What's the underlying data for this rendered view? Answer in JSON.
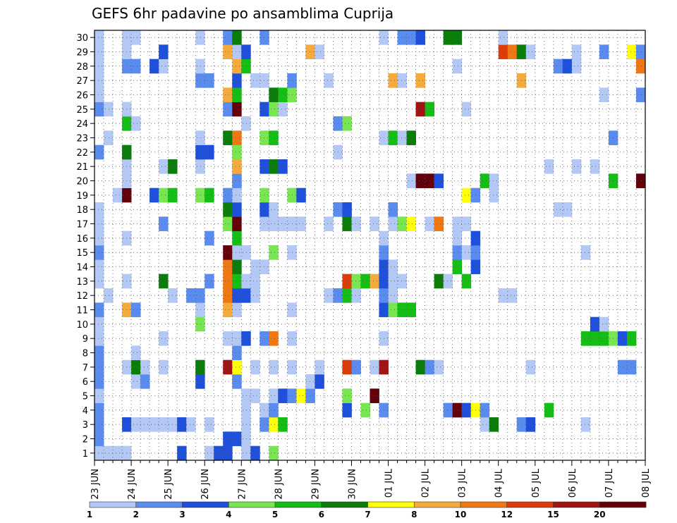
{
  "chart_data": {
    "type": "heatmap",
    "title": "GEFS 6hr padavine po ansamblima Cuprija",
    "xlabel": "",
    "ylabel": "",
    "x_tick_labels": [
      "23 JUN",
      "24 JUN",
      "25 JUN",
      "26 JUN",
      "27 JUN",
      "28 JUN",
      "29 JUN",
      "30 JUN",
      "01 JUL",
      "02 JUL",
      "03 JUL",
      "04 JUL",
      "05 JUL",
      "06 JUL",
      "07 JUL",
      "08 JUL"
    ],
    "y_tick_labels": [
      "1",
      "2",
      "3",
      "4",
      "5",
      "6",
      "7",
      "8",
      "9",
      "10",
      "11",
      "12",
      "13",
      "14",
      "15",
      "16",
      "17",
      "18",
      "19",
      "20",
      "21",
      "22",
      "23",
      "24",
      "25",
      "26",
      "27",
      "28",
      "29",
      "30"
    ],
    "x_steps_per_day": 4,
    "n_time_steps": 60,
    "n_members": 30,
    "grid": true,
    "grid_style": "dotted",
    "colorbar": {
      "orientation": "horizontal",
      "placement": "bottom",
      "labels": [
        "1",
        "2",
        "3",
        "4",
        "5",
        "6",
        "7",
        "8",
        "10",
        "12",
        "15",
        "20"
      ],
      "colors": [
        "#b4c8f5",
        "#5a8cf0",
        "#1e50dc",
        "#78e650",
        "#14be14",
        "#0a7d0a",
        "#ffff0a",
        "#f5aa3c",
        "#f07814",
        "#dc3c0a",
        "#a01414",
        "#64000a"
      ]
    },
    "cells": [
      [
        0,
        1,
        0
      ],
      [
        1,
        1,
        0
      ],
      [
        2,
        1,
        0
      ],
      [
        3,
        1,
        0
      ],
      [
        9,
        1,
        2
      ],
      [
        12,
        1,
        0
      ],
      [
        13,
        1,
        2
      ],
      [
        14,
        1,
        2
      ],
      [
        16,
        1,
        0
      ],
      [
        17,
        1,
        2
      ],
      [
        19,
        1,
        3
      ],
      [
        0,
        2,
        1
      ],
      [
        14,
        2,
        2
      ],
      [
        15,
        2,
        2
      ],
      [
        16,
        2,
        0
      ],
      [
        0,
        3,
        1
      ],
      [
        3,
        3,
        2
      ],
      [
        4,
        3,
        0
      ],
      [
        5,
        3,
        0
      ],
      [
        6,
        3,
        0
      ],
      [
        7,
        3,
        0
      ],
      [
        8,
        3,
        0
      ],
      [
        9,
        3,
        2
      ],
      [
        10,
        3,
        0
      ],
      [
        12,
        3,
        0
      ],
      [
        16,
        3,
        0
      ],
      [
        18,
        3,
        1
      ],
      [
        19,
        3,
        6
      ],
      [
        20,
        3,
        4
      ],
      [
        42,
        3,
        0
      ],
      [
        43,
        3,
        5
      ],
      [
        46,
        3,
        1
      ],
      [
        47,
        3,
        2
      ],
      [
        53,
        3,
        0
      ],
      [
        0,
        4,
        1
      ],
      [
        16,
        4,
        0
      ],
      [
        18,
        4,
        0
      ],
      [
        19,
        4,
        1
      ],
      [
        27,
        4,
        2
      ],
      [
        29,
        4,
        3
      ],
      [
        31,
        4,
        1
      ],
      [
        38,
        4,
        1
      ],
      [
        39,
        4,
        11
      ],
      [
        40,
        4,
        2
      ],
      [
        41,
        4,
        6
      ],
      [
        42,
        4,
        1
      ],
      [
        49,
        4,
        4
      ],
      [
        0,
        5,
        0
      ],
      [
        16,
        5,
        0
      ],
      [
        17,
        5,
        0
      ],
      [
        19,
        5,
        0
      ],
      [
        20,
        5,
        2
      ],
      [
        21,
        5,
        1
      ],
      [
        22,
        5,
        6
      ],
      [
        23,
        5,
        1
      ],
      [
        27,
        5,
        3
      ],
      [
        30,
        5,
        11
      ],
      [
        0,
        6,
        1
      ],
      [
        4,
        6,
        0
      ],
      [
        5,
        6,
        1
      ],
      [
        11,
        6,
        2
      ],
      [
        15,
        6,
        1
      ],
      [
        23,
        6,
        0
      ],
      [
        24,
        6,
        2
      ],
      [
        0,
        7,
        1
      ],
      [
        3,
        7,
        0
      ],
      [
        4,
        7,
        5
      ],
      [
        5,
        7,
        0
      ],
      [
        7,
        7,
        0
      ],
      [
        11,
        7,
        5
      ],
      [
        14,
        7,
        10
      ],
      [
        15,
        7,
        6
      ],
      [
        17,
        7,
        0
      ],
      [
        19,
        7,
        0
      ],
      [
        21,
        7,
        0
      ],
      [
        24,
        7,
        0
      ],
      [
        27,
        7,
        9
      ],
      [
        28,
        7,
        1
      ],
      [
        30,
        7,
        0
      ],
      [
        31,
        7,
        10
      ],
      [
        35,
        7,
        5
      ],
      [
        36,
        7,
        1
      ],
      [
        37,
        7,
        0
      ],
      [
        47,
        7,
        0
      ],
      [
        57,
        7,
        1
      ],
      [
        58,
        7,
        1
      ],
      [
        0,
        8,
        1
      ],
      [
        4,
        8,
        0
      ],
      [
        15,
        8,
        1
      ],
      [
        0,
        9,
        0
      ],
      [
        7,
        9,
        0
      ],
      [
        14,
        9,
        0
      ],
      [
        15,
        9,
        0
      ],
      [
        16,
        9,
        2
      ],
      [
        18,
        9,
        1
      ],
      [
        19,
        9,
        8
      ],
      [
        21,
        9,
        0
      ],
      [
        31,
        9,
        0
      ],
      [
        53,
        9,
        4
      ],
      [
        54,
        9,
        4
      ],
      [
        55,
        9,
        4
      ],
      [
        56,
        9,
        3
      ],
      [
        57,
        9,
        2
      ],
      [
        58,
        9,
        4
      ],
      [
        0,
        10,
        0
      ],
      [
        11,
        10,
        3
      ],
      [
        54,
        10,
        2
      ],
      [
        55,
        10,
        0
      ],
      [
        0,
        11,
        1
      ],
      [
        3,
        11,
        7
      ],
      [
        4,
        11,
        1
      ],
      [
        11,
        11,
        0
      ],
      [
        14,
        11,
        7
      ],
      [
        15,
        11,
        0
      ],
      [
        21,
        11,
        0
      ],
      [
        31,
        11,
        2
      ],
      [
        32,
        11,
        3
      ],
      [
        33,
        11,
        4
      ],
      [
        34,
        11,
        4
      ],
      [
        1,
        12,
        0
      ],
      [
        8,
        12,
        0
      ],
      [
        10,
        12,
        1
      ],
      [
        11,
        12,
        1
      ],
      [
        14,
        12,
        8
      ],
      [
        15,
        12,
        2
      ],
      [
        16,
        12,
        2
      ],
      [
        17,
        12,
        0
      ],
      [
        25,
        12,
        0
      ],
      [
        26,
        12,
        1
      ],
      [
        27,
        12,
        4
      ],
      [
        28,
        12,
        0
      ],
      [
        31,
        12,
        1
      ],
      [
        32,
        12,
        0
      ],
      [
        44,
        12,
        0
      ],
      [
        45,
        12,
        0
      ],
      [
        0,
        13,
        0
      ],
      [
        3,
        13,
        0
      ],
      [
        7,
        13,
        5
      ],
      [
        12,
        13,
        1
      ],
      [
        14,
        13,
        8
      ],
      [
        15,
        13,
        4
      ],
      [
        16,
        13,
        0
      ],
      [
        17,
        13,
        0
      ],
      [
        27,
        13,
        9
      ],
      [
        28,
        13,
        3
      ],
      [
        29,
        13,
        4
      ],
      [
        30,
        13,
        7
      ],
      [
        31,
        13,
        2
      ],
      [
        32,
        13,
        0
      ],
      [
        33,
        13,
        0
      ],
      [
        37,
        13,
        5
      ],
      [
        38,
        13,
        0
      ],
      [
        40,
        13,
        4
      ],
      [
        0,
        14,
        0
      ],
      [
        14,
        14,
        8
      ],
      [
        15,
        14,
        5
      ],
      [
        17,
        14,
        0
      ],
      [
        18,
        14,
        0
      ],
      [
        31,
        14,
        2
      ],
      [
        32,
        14,
        0
      ],
      [
        39,
        14,
        4
      ],
      [
        41,
        14,
        2
      ],
      [
        0,
        15,
        1
      ],
      [
        14,
        15,
        11
      ],
      [
        15,
        15,
        0
      ],
      [
        16,
        15,
        0
      ],
      [
        19,
        15,
        3
      ],
      [
        21,
        15,
        0
      ],
      [
        31,
        15,
        1
      ],
      [
        39,
        15,
        1
      ],
      [
        40,
        15,
        0
      ],
      [
        41,
        15,
        1
      ],
      [
        53,
        15,
        0
      ],
      [
        0,
        16,
        0
      ],
      [
        3,
        16,
        0
      ],
      [
        12,
        16,
        1
      ],
      [
        15,
        16,
        4
      ],
      [
        31,
        16,
        0
      ],
      [
        39,
        16,
        0
      ],
      [
        41,
        16,
        2
      ],
      [
        0,
        17,
        0
      ],
      [
        7,
        17,
        1
      ],
      [
        14,
        17,
        3
      ],
      [
        15,
        17,
        11
      ],
      [
        18,
        17,
        0
      ],
      [
        19,
        17,
        0
      ],
      [
        20,
        17,
        0
      ],
      [
        21,
        17,
        0
      ],
      [
        22,
        17,
        0
      ],
      [
        25,
        17,
        0
      ],
      [
        27,
        17,
        5
      ],
      [
        28,
        17,
        0
      ],
      [
        30,
        17,
        0
      ],
      [
        32,
        17,
        0
      ],
      [
        33,
        17,
        3
      ],
      [
        34,
        17,
        6
      ],
      [
        36,
        17,
        0
      ],
      [
        37,
        17,
        8
      ],
      [
        39,
        17,
        0
      ],
      [
        40,
        17,
        0
      ],
      [
        0,
        18,
        0
      ],
      [
        14,
        18,
        5
      ],
      [
        15,
        18,
        2
      ],
      [
        18,
        18,
        2
      ],
      [
        19,
        18,
        0
      ],
      [
        26,
        18,
        1
      ],
      [
        27,
        18,
        2
      ],
      [
        32,
        18,
        1
      ],
      [
        50,
        18,
        0
      ],
      [
        51,
        18,
        0
      ],
      [
        2,
        19,
        0
      ],
      [
        3,
        19,
        11
      ],
      [
        6,
        19,
        2
      ],
      [
        7,
        19,
        3
      ],
      [
        8,
        19,
        4
      ],
      [
        11,
        19,
        3
      ],
      [
        12,
        19,
        4
      ],
      [
        14,
        19,
        1
      ],
      [
        15,
        19,
        0
      ],
      [
        18,
        19,
        3
      ],
      [
        21,
        19,
        3
      ],
      [
        22,
        19,
        2
      ],
      [
        40,
        19,
        6
      ],
      [
        41,
        19,
        1
      ],
      [
        43,
        19,
        0
      ],
      [
        3,
        20,
        0
      ],
      [
        15,
        20,
        1
      ],
      [
        34,
        20,
        0
      ],
      [
        35,
        20,
        11
      ],
      [
        36,
        20,
        11
      ],
      [
        37,
        20,
        2
      ],
      [
        42,
        20,
        4
      ],
      [
        43,
        20,
        0
      ],
      [
        56,
        20,
        4
      ],
      [
        59,
        20,
        11
      ],
      [
        3,
        21,
        0
      ],
      [
        7,
        21,
        0
      ],
      [
        8,
        21,
        5
      ],
      [
        11,
        21,
        0
      ],
      [
        15,
        21,
        7
      ],
      [
        18,
        21,
        2
      ],
      [
        19,
        21,
        5
      ],
      [
        20,
        21,
        2
      ],
      [
        49,
        21,
        0
      ],
      [
        52,
        21,
        0
      ],
      [
        54,
        21,
        0
      ],
      [
        0,
        22,
        1
      ],
      [
        3,
        22,
        5
      ],
      [
        11,
        22,
        2
      ],
      [
        12,
        22,
        2
      ],
      [
        15,
        22,
        3
      ],
      [
        26,
        22,
        0
      ],
      [
        1,
        23,
        0
      ],
      [
        11,
        23,
        0
      ],
      [
        14,
        23,
        5
      ],
      [
        15,
        23,
        8
      ],
      [
        18,
        23,
        3
      ],
      [
        19,
        23,
        4
      ],
      [
        31,
        23,
        0
      ],
      [
        32,
        23,
        4
      ],
      [
        33,
        23,
        0
      ],
      [
        34,
        23,
        5
      ],
      [
        56,
        23,
        1
      ],
      [
        3,
        24,
        4
      ],
      [
        4,
        24,
        0
      ],
      [
        16,
        24,
        0
      ],
      [
        26,
        24,
        1
      ],
      [
        27,
        24,
        3
      ],
      [
        0,
        25,
        1
      ],
      [
        1,
        25,
        0
      ],
      [
        3,
        25,
        0
      ],
      [
        14,
        25,
        1
      ],
      [
        15,
        25,
        11
      ],
      [
        18,
        25,
        2
      ],
      [
        19,
        25,
        3
      ],
      [
        20,
        25,
        0
      ],
      [
        35,
        25,
        10
      ],
      [
        36,
        25,
        4
      ],
      [
        40,
        25,
        0
      ],
      [
        0,
        26,
        0
      ],
      [
        14,
        26,
        7
      ],
      [
        15,
        26,
        4
      ],
      [
        19,
        26,
        5
      ],
      [
        20,
        26,
        4
      ],
      [
        21,
        26,
        3
      ],
      [
        55,
        26,
        0
      ],
      [
        59,
        26,
        1
      ],
      [
        0,
        27,
        0
      ],
      [
        11,
        27,
        1
      ],
      [
        12,
        27,
        1
      ],
      [
        15,
        27,
        2
      ],
      [
        17,
        27,
        0
      ],
      [
        18,
        27,
        0
      ],
      [
        21,
        27,
        1
      ],
      [
        25,
        27,
        0
      ],
      [
        32,
        27,
        7
      ],
      [
        33,
        27,
        0
      ],
      [
        35,
        27,
        7
      ],
      [
        46,
        27,
        7
      ],
      [
        0,
        28,
        0
      ],
      [
        3,
        28,
        1
      ],
      [
        4,
        28,
        1
      ],
      [
        6,
        28,
        2
      ],
      [
        7,
        28,
        0
      ],
      [
        11,
        28,
        0
      ],
      [
        15,
        28,
        7
      ],
      [
        16,
        28,
        4
      ],
      [
        39,
        28,
        0
      ],
      [
        50,
        28,
        1
      ],
      [
        51,
        28,
        2
      ],
      [
        52,
        28,
        0
      ],
      [
        59,
        28,
        8
      ],
      [
        0,
        29,
        0
      ],
      [
        3,
        29,
        0
      ],
      [
        7,
        29,
        2
      ],
      [
        14,
        29,
        7
      ],
      [
        15,
        29,
        0
      ],
      [
        16,
        29,
        2
      ],
      [
        23,
        29,
        7
      ],
      [
        24,
        29,
        0
      ],
      [
        44,
        29,
        9
      ],
      [
        45,
        29,
        8
      ],
      [
        46,
        29,
        5
      ],
      [
        47,
        29,
        0
      ],
      [
        52,
        29,
        0
      ],
      [
        55,
        29,
        1
      ],
      [
        58,
        29,
        6
      ],
      [
        59,
        29,
        1
      ],
      [
        0,
        30,
        0
      ],
      [
        3,
        30,
        0
      ],
      [
        4,
        30,
        0
      ],
      [
        11,
        30,
        0
      ],
      [
        14,
        30,
        1
      ],
      [
        15,
        30,
        5
      ],
      [
        18,
        30,
        1
      ],
      [
        31,
        30,
        0
      ],
      [
        33,
        30,
        1
      ],
      [
        34,
        30,
        1
      ],
      [
        35,
        30,
        2
      ],
      [
        38,
        30,
        5
      ],
      [
        39,
        30,
        5
      ],
      [
        44,
        30,
        0
      ]
    ]
  }
}
